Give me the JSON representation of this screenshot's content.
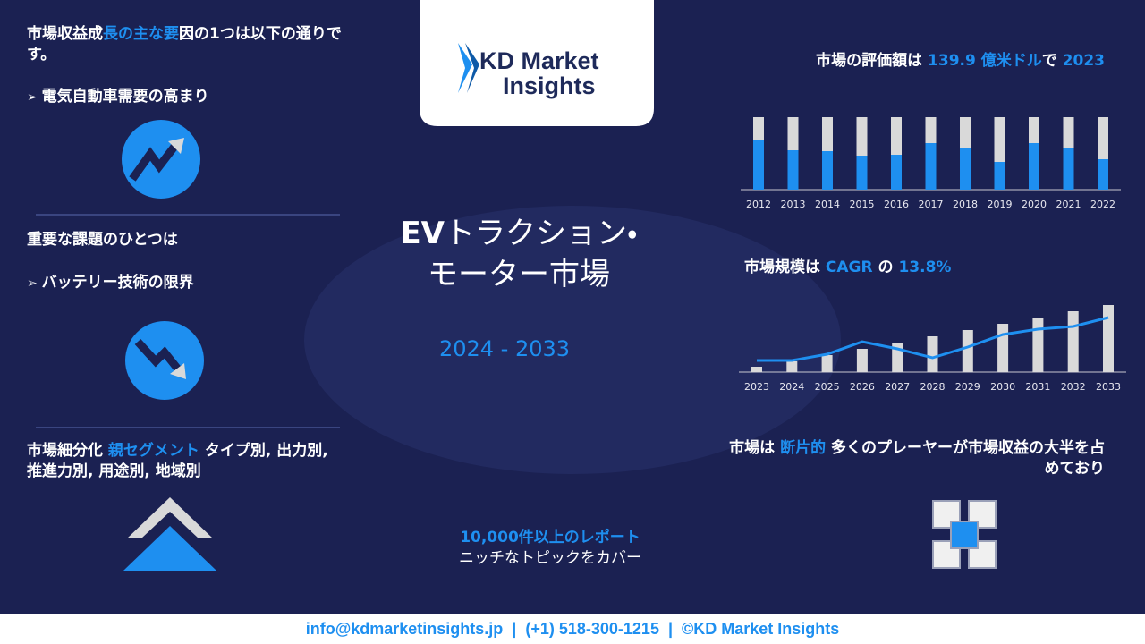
{
  "logo": {
    "line1": "KD Market",
    "line2": "Insights"
  },
  "drivers": {
    "heading": [
      "市場収益成",
      "長の主な要",
      "因の1つは以下の通りです。"
    ],
    "item": "電気自動車需要の高まり"
  },
  "challenges": {
    "heading": "重要な課題のひとつは",
    "item": "バッテリー技術の限界"
  },
  "segments": {
    "heading": [
      "市場細分化 ",
      "親セグメント",
      " タイプ別, 出力別, 推進力別, 用途別, 地域別"
    ]
  },
  "title": {
    "line1": [
      "EV",
      "トラクション・"
    ],
    "line2": "モーター市場",
    "period": "2024 - 2033"
  },
  "reports": {
    "count": "10,000件以上のレポート",
    "coverage": "ニッチなトピックをカバー"
  },
  "valuation": [
    "市場の評価額は ",
    "139.9 億米ドル",
    "で ",
    "2023"
  ],
  "cagr": [
    "市場規模は ",
    "CAGR",
    " の ",
    "13.8%"
  ],
  "fragmented": [
    "市場は ",
    "断片的",
    " 多くのプレーヤーが市場収益の大半を占めており"
  ],
  "footer": [
    "info@kdmarketinsights.jp",
    "(+1) 518-300-1215",
    "©KD Market Insights"
  ],
  "history_chart": {
    "type": "stacked",
    "categories": [
      "2012",
      "2013",
      "2014",
      "2015",
      "2016",
      "2017",
      "2018",
      "2019",
      "2020",
      "2021",
      "2022"
    ],
    "series": [
      {
        "color": "#1e8ff0",
        "values": [
          55,
          44,
          43,
          38,
          39,
          52,
          46,
          31,
          52,
          46,
          34
        ]
      },
      {
        "color": "#d9d9d9",
        "values": [
          26,
          37,
          38,
          43,
          42,
          29,
          35,
          50,
          29,
          35,
          47
        ]
      }
    ],
    "ylim": [
      0,
      81
    ]
  },
  "forecast_chart": {
    "type": "combo",
    "categories": [
      "2023",
      "2024",
      "2025",
      "2026",
      "2027",
      "2028",
      "2029",
      "2030",
      "2031",
      "2032",
      "2033"
    ],
    "series": [
      {
        "color": "#d9d9d9",
        "values": [
          6,
          12,
          19,
          26,
          33,
          40,
          47,
          54,
          61,
          68,
          75
        ]
      },
      {
        "color": "#1e8ff0",
        "values": [
          13,
          13,
          20,
          34,
          26,
          16,
          28,
          42,
          48,
          51,
          61
        ]
      }
    ],
    "ylim": [
      0,
      80
    ]
  }
}
